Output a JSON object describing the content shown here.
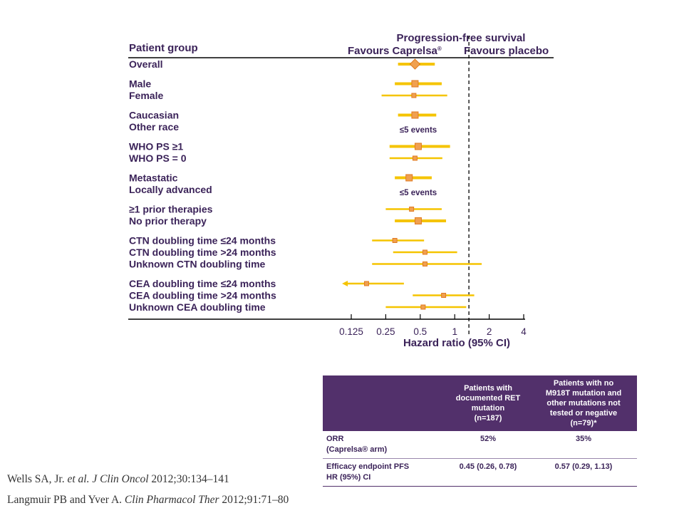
{
  "chart_data": {
    "type": "forest",
    "title": "Progression-free survival",
    "column_header": "Patient group",
    "favours_left": "Favours Caprelsa",
    "favours_left_mark": "®",
    "favours_right": "Favours placebo",
    "xlabel": "Hazard ratio (95% CI)",
    "x_scale": "log2",
    "xlim": [
      0.125,
      4
    ],
    "x_ticks": [
      0.125,
      0.25,
      0.5,
      1,
      2,
      4
    ],
    "x_tick_labels": [
      "0.125",
      "0.25",
      "0.5",
      "1",
      "2",
      "4"
    ],
    "reference_line": 1.33,
    "point_color": "#f0a050",
    "ci_color": "#f5c400",
    "groups": [
      [
        {
          "label": "Overall",
          "hr": 0.45,
          "lo": 0.32,
          "hi": 0.67,
          "shape": "diamond",
          "ci_weight": "thick"
        }
      ],
      [
        {
          "label": "Male",
          "hr": 0.45,
          "lo": 0.3,
          "hi": 0.77,
          "shape": "square",
          "ci_weight": "thick"
        },
        {
          "label": "Female",
          "hr": 0.44,
          "lo": 0.23,
          "hi": 0.86,
          "shape": "square",
          "ci_weight": "thin"
        }
      ],
      [
        {
          "label": "Caucasian",
          "hr": 0.45,
          "lo": 0.32,
          "hi": 0.69,
          "shape": "square",
          "ci_weight": "thick"
        },
        {
          "label": "Other race",
          "note": "≤5 events"
        }
      ],
      [
        {
          "label": "WHO PS ≥1",
          "hr": 0.48,
          "lo": 0.27,
          "hi": 0.91,
          "shape": "square",
          "ci_weight": "thick"
        },
        {
          "label": "WHO PS = 0",
          "hr": 0.45,
          "lo": 0.27,
          "hi": 0.78,
          "shape": "square",
          "ci_weight": "thin"
        }
      ],
      [
        {
          "label": "Metastatic",
          "hr": 0.4,
          "lo": 0.3,
          "hi": 0.63,
          "shape": "square",
          "ci_weight": "thick"
        },
        {
          "label": "Locally advanced",
          "note": "≤5 events"
        }
      ],
      [
        {
          "label": "≥1 prior therapies",
          "hr": 0.42,
          "lo": 0.25,
          "hi": 0.77,
          "shape": "square",
          "ci_weight": "thin"
        },
        {
          "label": "No prior therapy",
          "hr": 0.48,
          "lo": 0.3,
          "hi": 0.84,
          "shape": "square",
          "ci_weight": "thick"
        }
      ],
      [
        {
          "label": "CTN doubling time ≤24 months",
          "hr": 0.3,
          "lo": 0.19,
          "hi": 0.54,
          "shape": "square",
          "ci_weight": "thin"
        },
        {
          "label": "CTN doubling time >24 months",
          "hr": 0.55,
          "lo": 0.29,
          "hi": 1.05,
          "shape": "square",
          "ci_weight": "thin"
        },
        {
          "label": "Unknown CTN doubling time",
          "hr": 0.55,
          "lo": 0.19,
          "hi": 1.72,
          "shape": "square",
          "ci_weight": "thin"
        }
      ],
      [
        {
          "label": "CEA doubling time ≤24 months",
          "hr": 0.17,
          "lo": 0.11,
          "hi": 0.36,
          "shape": "square",
          "ci_weight": "thin",
          "arrow_left": true
        },
        {
          "label": "CEA doubling time >24 months",
          "hr": 0.8,
          "lo": 0.43,
          "hi": 1.48,
          "shape": "square",
          "ci_weight": "thin"
        },
        {
          "label": "Unknown CEA doubling time",
          "hr": 0.53,
          "lo": 0.25,
          "hi": 1.26,
          "shape": "square",
          "ci_weight": "thin"
        }
      ]
    ]
  },
  "summary_table": {
    "col1_header": "",
    "col2_header": [
      "Patients with",
      "documented RET",
      "mutation",
      "(n=187)"
    ],
    "col3_header": [
      "Patients with no",
      "M918T mutation and",
      "other mutations not",
      "tested or negative",
      "(n=79)*"
    ],
    "rows": [
      {
        "label_lines": [
          "ORR",
          "(Caprelsa® arm)"
        ],
        "col2": "52%",
        "col3": "35%"
      },
      {
        "label_lines": [
          "Efficacy endpoint PFS",
          "HR (95%) CI"
        ],
        "col2": "0.45 (0.26, 0.78)",
        "col3": "0.57 (0.29, 1.13)"
      }
    ]
  },
  "references": [
    {
      "authors": "Wells SA, Jr. ",
      "etal": "et al.",
      "journal": "J Clin Oncol",
      "citation": " 2012;30:134–141"
    },
    {
      "authors": "Langmuir PB and Yver A. ",
      "etal": "",
      "journal": "Clin Pharmacol Ther",
      "citation": " 2012;91:71–80"
    }
  ],
  "colors": {
    "text_purple": "#3b2359",
    "header_fill": "#52306b",
    "ci": "#f5c400",
    "point": "#f0a050"
  }
}
